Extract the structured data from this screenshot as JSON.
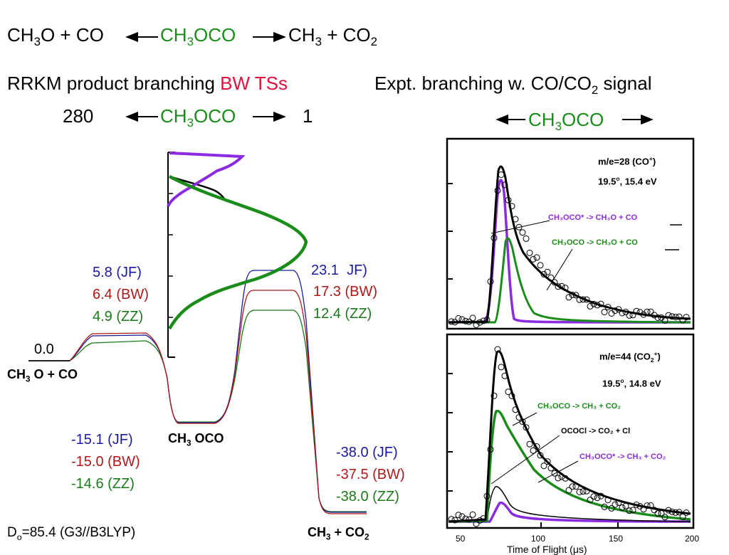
{
  "top_reaction": {
    "left_pre": "CH",
    "left_sub": "3",
    "left_post": "O + CO",
    "center_pre": "CH",
    "center_sub": "3",
    "center_post": "OCO",
    "right_pre": "CH",
    "right_sub": "3",
    "right_mid": " + CO",
    "right_sub2": "2"
  },
  "rrkm": {
    "label": "RRKM product branching",
    "bw": "BW TSs",
    "left_value": "280",
    "center_pre": "CH",
    "center_sub": "3",
    "center_post": "OCO",
    "right_value": "1"
  },
  "expt": {
    "label_pre": "Expt. branching w. CO/CO",
    "label_sub": "2",
    "label_post": " signal",
    "center_pre": "CH",
    "center_sub": "3",
    "center_post": "OCO"
  },
  "energy": {
    "reactant_value": "0.0",
    "reactant_label_pre": "CH",
    "reactant_label_sub": "3",
    "reactant_label_post": " O + CO",
    "ts1": {
      "jf": "5.8 (JF)",
      "bw": "6.4 (BW)",
      "zz": "4.9 (ZZ)"
    },
    "well": {
      "jf": "-15.1 (JF)",
      "bw": "-15.0 (BW)",
      "zz": "-14.6 (ZZ)",
      "label_pre": "CH",
      "label_sub": "3",
      "label_post": " OCO"
    },
    "ts2": {
      "jf_value": "23.1",
      "jf_tag": "JF)",
      "bw": "17.3 (BW)",
      "zz": "12.4 (ZZ)"
    },
    "product": {
      "jf": "-38.0 (JF)",
      "bw": "-37.5 (BW)",
      "zz": "-38.0 (ZZ)",
      "label_pre": "CH",
      "label_sub": "3",
      "label_mid": "  + CO",
      "label_sub2": "2"
    },
    "d0_pre": "D",
    "d0_sub": "o",
    "d0_post": "=85.4 (G3//B3LYP)"
  },
  "panel_top": {
    "title_pre": "m/e=28 (CO",
    "title_sup": "+",
    "title_post": ")",
    "cond_pre": "19.5",
    "cond_sup": "o",
    "cond_post": ", 15.4 eV",
    "leg1": "CH₃OCO* -> CH₃O + CO",
    "leg2": "CH₃OCO -> CH₃O + CO"
  },
  "panel_bottom": {
    "title_pre": "m/e=44 (CO",
    "title_sub": "2",
    "title_sup": "+",
    "title_post": ")",
    "cond_pre": "19.5",
    "cond_sup": "o",
    "cond_post": ", 14.8 eV",
    "leg1": "CH₃OCO -> CH₃ + CO₂",
    "leg2": "OCOCl -> CO₂ + Cl",
    "leg3": "CH₃OCO* -> CH₃ + CO₂"
  },
  "x_axis": {
    "ticks": [
      "50",
      "100",
      "150",
      "200"
    ],
    "partial_label": "Time of Flight (μs)"
  },
  "colors": {
    "jf": "#1a1aa0",
    "bw": "#b01818",
    "zz": "#1a7a1a",
    "purple": "#8a2be2",
    "green": "#1a8c1a"
  }
}
